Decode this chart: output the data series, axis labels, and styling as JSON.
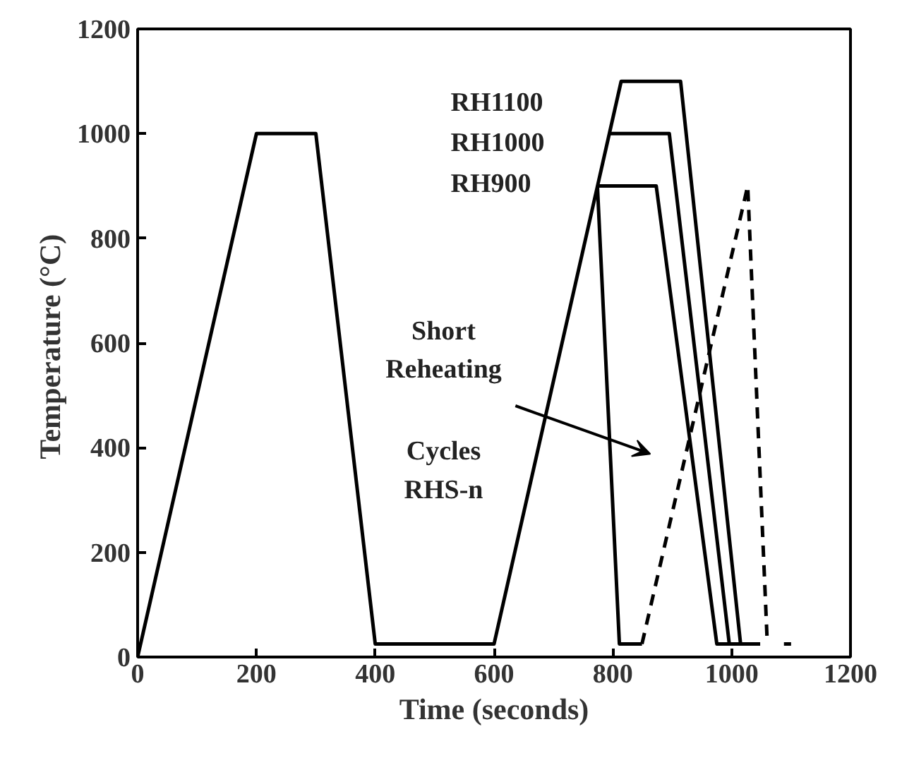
{
  "chart_data": {
    "type": "line",
    "xlabel": "Time (seconds)",
    "ylabel": "Temperature  (°C)",
    "xlim": [
      0,
      1200
    ],
    "ylim": [
      0,
      1200
    ],
    "xticks": [
      0,
      200,
      400,
      600,
      800,
      1000,
      1200
    ],
    "yticks": [
      0,
      200,
      400,
      600,
      800,
      1000,
      1200
    ],
    "grid": false,
    "marker": "none",
    "series": [
      {
        "color": "#000000",
        "line_style": "solid",
        "x": [
          0,
          200,
          300,
          400,
          600,
          814,
          914,
          1015,
          1048
        ],
        "values": [
          0,
          1000,
          1000,
          25,
          25,
          1100,
          1100,
          25,
          25
        ]
      },
      {
        "color": "#000000",
        "line_style": "solid",
        "x": [
          794,
          895,
          996,
          1015
        ],
        "values": [
          1000,
          1000,
          25,
          25
        ]
      },
      {
        "color": "#000000",
        "line_style": "solid",
        "x": [
          774,
          873,
          975,
          996
        ],
        "values": [
          900,
          900,
          25,
          25
        ]
      },
      {
        "color": "#000000",
        "line_style": "solid",
        "x": [
          774,
          811,
          849
        ],
        "values": [
          900,
          25,
          25
        ]
      },
      {
        "color": "#000000",
        "line_style": "dashed",
        "x": [
          849,
          1027,
          1060,
          1078,
          1088,
          1100
        ],
        "values": [
          25,
          900,
          25,
          null,
          25,
          25
        ]
      }
    ],
    "annotations": [
      "RH1100",
      "RH1000",
      "RH900",
      "Short\nReheating",
      "Cycles\nRHS-n"
    ]
  }
}
